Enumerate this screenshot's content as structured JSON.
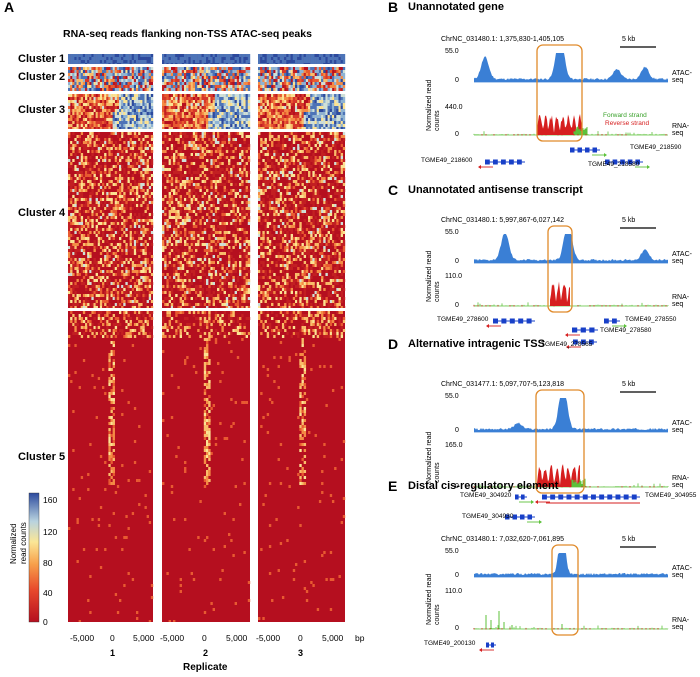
{
  "panel_a": {
    "letter": "A",
    "title": "RNA-seq reads flanking non-TSS ATAC-seq peaks",
    "clusters": [
      "Cluster 1",
      "Cluster 2",
      "Cluster 3",
      "Cluster 4",
      "Cluster 5"
    ],
    "x_ticks": [
      "-5,000",
      "0",
      "5,000"
    ],
    "replicates": [
      "1",
      "2",
      "3"
    ],
    "bp": "bp",
    "xlabel": "Replicate",
    "colorbar": {
      "label_line1": "Normalized",
      "label_line2": "read counts",
      "ticks": [
        "160",
        "120",
        "80",
        "40",
        "0"
      ]
    }
  },
  "panels": [
    {
      "letter": "B",
      "title": "Unannotated gene",
      "locus": "ChrNC_031480.1: 1,375,830-1,405,105",
      "scale": "5 kb",
      "atac_max": "55.0",
      "atac_min": "0",
      "rna_max": "440.0",
      "rna_min": "0",
      "forward_label": "Forward strand",
      "reverse_label": "Reverse strand",
      "genes": [
        "TGME49_218590",
        "TGME49_218600",
        "TGME49_218580"
      ]
    },
    {
      "letter": "C",
      "title": "Unannotated antisense transcript",
      "locus": "ChrNC_031480.1: 5,997,867-6,027,142",
      "scale": "5 kb",
      "atac_max": "55.0",
      "atac_min": "0",
      "rna_max": "110.0",
      "rna_min": "0",
      "genes": [
        "TGME49_278600",
        "TGME49_278550",
        "TGME49_278580",
        "TGME49_278565"
      ]
    },
    {
      "letter": "D",
      "title": "Alternative intragenic TSS",
      "locus": "ChrNC_031477.1: 5,097,707-5,123,818",
      "scale": "5 kb",
      "atac_max": "55.0",
      "atac_min": "0",
      "rna_max": "165.0",
      "rna_min": "0",
      "genes": [
        "TGME49_304920",
        "TGME49_304955",
        "TGME49_304930"
      ]
    },
    {
      "letter": "E",
      "title": "Distal cis-regulatory element",
      "locus": "ChrNC_031480.1: 7,032,620-7,061,895",
      "scale": "5 kb",
      "atac_max": "55.0",
      "atac_min": "0",
      "rna_max": "110.0",
      "rna_min": "0",
      "genes": [
        "TGME49_200130"
      ]
    }
  ],
  "track_labels": {
    "atac": "ATAC-seq",
    "rna": "RNA-seq",
    "ylab1": "Normalized",
    "ylab2": "read counts"
  },
  "colors": {
    "atac": "#3a7fd5",
    "rna_forward": "#5cc13a",
    "rna_reverse": "#d61f1f",
    "highlight": "#e08a2a",
    "gene": "#1840c8",
    "heat_low": "#b50f1f",
    "heat_mid": "#f6e08a",
    "heat_high": "#2c4a9e"
  }
}
